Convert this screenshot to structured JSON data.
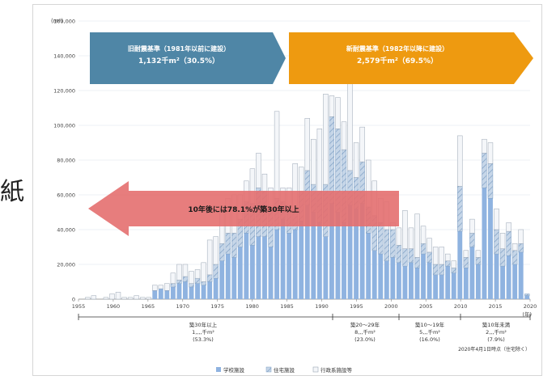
{
  "page": {
    "stray_char": "紙",
    "source_note": "2020年4月1日時点（住宅除く）"
  },
  "chart_data": {
    "type": "bar",
    "stacked": true,
    "ylabel": "(m²)",
    "ylim": [
      0,
      160000
    ],
    "yticks": [
      "0",
      "20,000",
      "40,000",
      "60,000",
      "80,000",
      "100,000",
      "120,000",
      "140,000",
      "160,000"
    ],
    "ytick_values": [
      0,
      20000,
      40000,
      60000,
      80000,
      100000,
      120000,
      140000,
      160000
    ],
    "xticks": [
      "1955",
      "1960",
      "1965",
      "1970",
      "1975",
      "1980",
      "1985",
      "1990",
      "1995",
      "2000",
      "2005",
      "2010",
      "2015",
      "2020"
    ],
    "x_unit": "(年)",
    "x_first_year": 1955,
    "x_last_year": 2020,
    "grid": true,
    "legend_position": "bottom",
    "series": [
      {
        "name": "学校施設",
        "color": "#8fb3e0",
        "values": [
          0,
          0,
          0,
          0,
          0,
          0,
          0,
          0,
          0,
          0,
          0,
          0,
          5000,
          6000,
          5000,
          7000,
          9000,
          10000,
          7000,
          9000,
          8000,
          10000,
          12000,
          22000,
          26000,
          24000,
          30000,
          38000,
          31000,
          36000,
          36000,
          30000,
          40000,
          46000,
          38000,
          40000,
          45000,
          54000,
          50000,
          44000,
          36000,
          55000,
          50000,
          44000,
          54000,
          52000,
          55000,
          38000,
          28000,
          26000,
          22000,
          24000,
          21000,
          19000,
          21000,
          18000,
          26000,
          21000,
          14000,
          14000,
          19000,
          15000,
          39000,
          18000,
          30000,
          20000,
          64000,
          58000,
          26000,
          19000,
          25000,
          20000,
          27000,
          2000
        ]
      },
      {
        "name": "住宅施設",
        "color": "#b7cbe2",
        "values": [
          0,
          0,
          0,
          0,
          0,
          0,
          0,
          0,
          0,
          0,
          0,
          0,
          0,
          0,
          0,
          2000,
          2000,
          3000,
          2000,
          3000,
          2000,
          4000,
          8000,
          10000,
          12000,
          14000,
          16000,
          18000,
          24000,
          28000,
          26000,
          22000,
          18000,
          10000,
          14000,
          10000,
          17000,
          20000,
          16000,
          18000,
          30000,
          50000,
          48000,
          42000,
          20000,
          18000,
          24000,
          15000,
          20000,
          18000,
          18000,
          16000,
          10000,
          10000,
          8000,
          6000,
          6000,
          6000,
          6000,
          6000,
          3000,
          3000,
          26000,
          6000,
          8000,
          4000,
          20000,
          20000,
          14000,
          10000,
          14000,
          8000,
          5000,
          1000
        ]
      },
      {
        "name": "行政系施設等",
        "color": "#f4f6f9",
        "values": [
          0,
          1000,
          2000,
          0,
          1000,
          3000,
          4000,
          1000,
          1000,
          2000,
          1000,
          1000,
          3000,
          2000,
          4000,
          6000,
          9000,
          7000,
          7000,
          5000,
          11000,
          20000,
          16000,
          20000,
          20000,
          22000,
          14000,
          12000,
          20000,
          20000,
          10000,
          12000,
          50000,
          8000,
          12000,
          28000,
          14000,
          30000,
          26000,
          36000,
          52000,
          12000,
          18000,
          16000,
          60000,
          20000,
          20000,
          27000,
          20000,
          14000,
          16000,
          4000,
          10000,
          22000,
          12000,
          25000,
          10000,
          8000,
          10000,
          10000,
          4000,
          4000,
          29000,
          4000,
          8000,
          4000,
          8000,
          12000,
          12000,
          9000,
          5000,
          4000,
          8000,
          0
        ]
      }
    ]
  },
  "banners": {
    "left_title": "旧耐震基準（1981年以前に建設）",
    "left_value": "1,132千m²（30.5%）",
    "right_title": "新耐震基準（1982年以降に建設）",
    "right_value": "2,579千m²（69.5%）",
    "arrow_text": "10年後には78.1%が築30年以上",
    "left_color": "#4f86a6",
    "right_color": "#ee9a10",
    "arrow_color": "#e46f6f"
  },
  "ranges": [
    {
      "line1": "築30年以上",
      "line2": "1,,,,千m²",
      "line3": "(53.3%)"
    },
    {
      "line1": "築20～29年",
      "line2": "8,,,千m²",
      "line3": "(23.0%)"
    },
    {
      "line1": "築10～19年",
      "line2": "5,,,千m²",
      "line3": "(16.0%)"
    },
    {
      "line1": "築10年未満",
      "line2": "2,,,千m²",
      "line3": "(7.9%)"
    }
  ]
}
